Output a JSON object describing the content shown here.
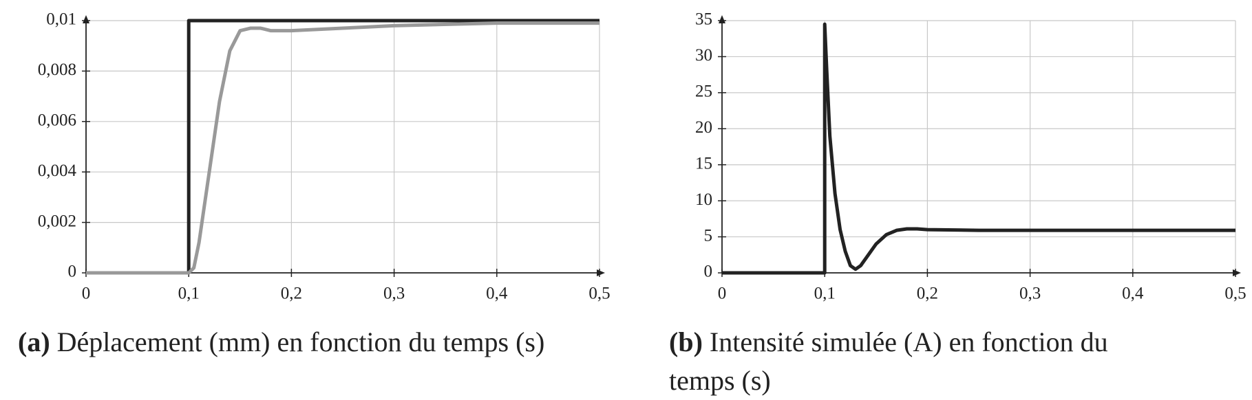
{
  "chart_data": [
    {
      "type": "line",
      "label": "(a)",
      "caption": "Déplacement (mm) en fonction du temps (s)",
      "xlim": [
        0,
        0.5
      ],
      "ylim": [
        0,
        0.01
      ],
      "grid": true,
      "xticks": [
        0,
        {
          "value": 0.1,
          "label": "0,1"
        },
        {
          "value": 0.2,
          "label": "0,2"
        },
        {
          "value": 0.3,
          "label": "0,3"
        },
        {
          "value": 0.4,
          "label": "0,4"
        },
        {
          "value": 0.5,
          "label": "0,5"
        }
      ],
      "yticks": [
        0,
        {
          "value": 0.002,
          "label": "0,002"
        },
        {
          "value": 0.004,
          "label": "0,004"
        },
        {
          "value": 0.006,
          "label": "0,006"
        },
        {
          "value": 0.008,
          "label": "0,008"
        },
        {
          "value": 0.01,
          "label": "0,01"
        }
      ],
      "series": [
        {
          "color": "#222222",
          "x": [
            0,
            0.1,
            0.1,
            0.5
          ],
          "values": [
            0,
            0,
            0.01,
            0.01
          ]
        },
        {
          "color": "#999999",
          "x": [
            0,
            0.1,
            0.105,
            0.11,
            0.12,
            0.13,
            0.14,
            0.15,
            0.16,
            0.17,
            0.18,
            0.2,
            0.25,
            0.3,
            0.4,
            0.5
          ],
          "values": [
            0,
            0,
            0.0002,
            0.0012,
            0.004,
            0.0068,
            0.0088,
            0.0096,
            0.0097,
            0.0097,
            0.0096,
            0.0096,
            0.0097,
            0.0098,
            0.0099,
            0.0099
          ]
        }
      ]
    },
    {
      "type": "line",
      "label": "(b)",
      "caption": "Intensité simulée (A) en fonction du temps (s)",
      "xlim": [
        0,
        0.5
      ],
      "ylim": [
        0,
        35
      ],
      "grid": true,
      "xticks": [
        0,
        {
          "value": 0.1,
          "label": "0,1"
        },
        {
          "value": 0.2,
          "label": "0,2"
        },
        {
          "value": 0.3,
          "label": "0,3"
        },
        {
          "value": 0.4,
          "label": "0,4"
        },
        {
          "value": 0.5,
          "label": "0,5"
        }
      ],
      "yticks": [
        0,
        5,
        10,
        15,
        20,
        25,
        30,
        35
      ],
      "series": [
        {
          "color": "#222222",
          "x": [
            0,
            0.1,
            0.1,
            0.102,
            0.105,
            0.11,
            0.115,
            0.12,
            0.125,
            0.13,
            0.135,
            0.14,
            0.15,
            0.16,
            0.17,
            0.18,
            0.19,
            0.2,
            0.25,
            0.5
          ],
          "values": [
            0,
            0,
            34.5,
            28,
            19,
            11,
            6,
            3,
            1,
            0.5,
            1,
            2,
            4,
            5.3,
            5.9,
            6.1,
            6.1,
            6,
            5.9,
            5.9
          ]
        }
      ]
    }
  ]
}
